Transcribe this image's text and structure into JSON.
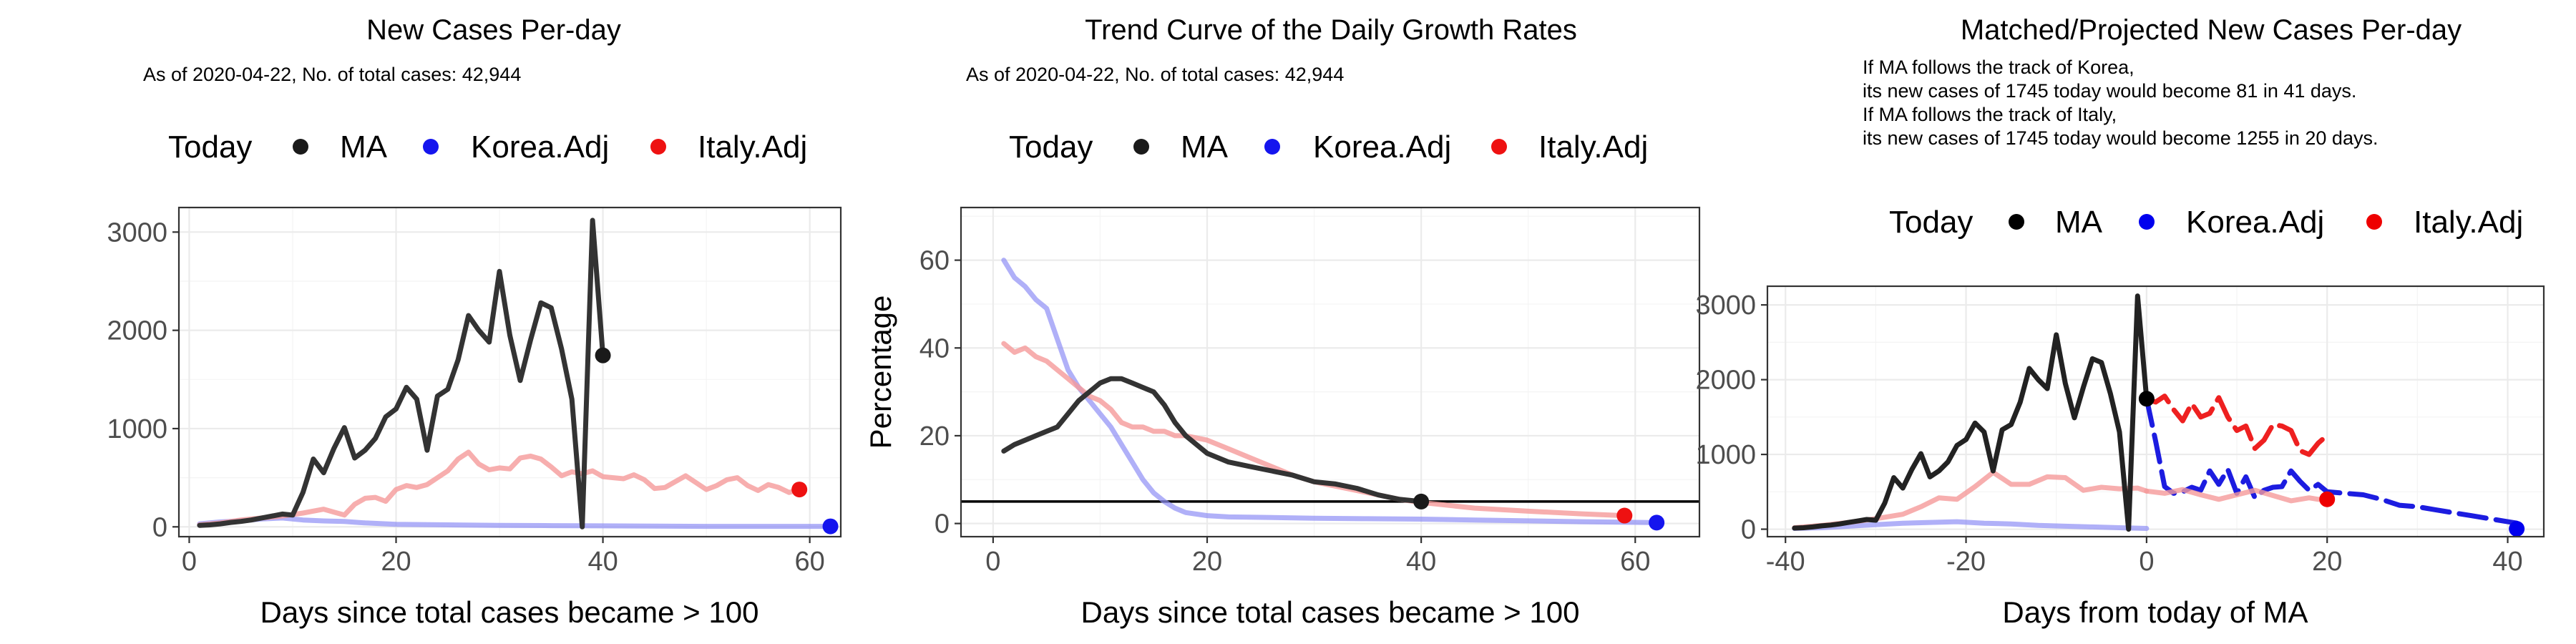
{
  "chart_data": [
    {
      "type": "line",
      "title": "New Cases Per-day",
      "subtitle": "As of 2020-04-22, No. of total cases: 42,944",
      "xlabel": "Days since total cases became > 100",
      "ylabel": "",
      "xlim": [
        -1,
        63
      ],
      "ylim": [
        -100,
        3250
      ],
      "xticks": [
        0,
        20,
        40,
        60
      ],
      "yticks": [
        0,
        1000,
        2000,
        3000
      ],
      "grid": true,
      "legend": {
        "placement": "top",
        "title": "Today",
        "entries": [
          {
            "name": "MA",
            "color": "#1a1a1a"
          },
          {
            "name": "Korea.Adj",
            "color": "#1515ee"
          },
          {
            "name": "Italy.Adj",
            "color": "#ee1111"
          }
        ]
      },
      "series": [
        {
          "name": "Korea.Adj",
          "color": "#8f8ff5",
          "alpha": 0.7,
          "width": 7,
          "x": [
            1,
            3,
            5,
            7,
            9,
            11,
            13,
            15,
            17,
            20,
            25,
            30,
            35,
            40,
            45,
            50,
            55,
            62
          ],
          "y": [
            30,
            50,
            60,
            80,
            90,
            70,
            60,
            55,
            40,
            25,
            20,
            15,
            12,
            10,
            8,
            5,
            5,
            5
          ]
        },
        {
          "name": "Italy.Adj",
          "color": "#f59a9a",
          "alpha": 0.8,
          "width": 7,
          "x": [
            1,
            3,
            5,
            7,
            9,
            11,
            13,
            14,
            15,
            16,
            17,
            18,
            19,
            20,
            21,
            22,
            23,
            24,
            25,
            26,
            27,
            28,
            29,
            30,
            31,
            32,
            33,
            34,
            35,
            36,
            37,
            38,
            39,
            40,
            41,
            42,
            43,
            44,
            45,
            46,
            47,
            48,
            49,
            50,
            51,
            52,
            53,
            54,
            55,
            56,
            57,
            58,
            59
          ],
          "y": [
            20,
            40,
            70,
            90,
            110,
            140,
            180,
            150,
            120,
            230,
            290,
            300,
            260,
            380,
            420,
            400,
            430,
            500,
            570,
            690,
            760,
            640,
            580,
            600,
            590,
            700,
            720,
            690,
            610,
            520,
            560,
            540,
            570,
            510,
            500,
            490,
            530,
            480,
            390,
            400,
            460,
            520,
            450,
            380,
            420,
            480,
            500,
            420,
            370,
            430,
            400,
            350,
            380
          ]
        },
        {
          "name": "MA",
          "color": "#333333",
          "alpha": 1,
          "width": 7,
          "x": [
            1,
            2,
            3,
            4,
            5,
            6,
            7,
            8,
            9,
            10,
            11,
            12,
            13,
            14,
            15,
            16,
            17,
            18,
            19,
            20,
            21,
            22,
            23,
            24,
            25,
            26,
            27,
            28,
            29,
            30,
            31,
            32,
            33,
            34,
            35,
            36,
            37,
            38,
            39,
            40
          ],
          "y": [
            15,
            20,
            30,
            45,
            55,
            70,
            90,
            110,
            130,
            120,
            350,
            690,
            550,
            800,
            1010,
            700,
            780,
            900,
            1120,
            1200,
            1420,
            1300,
            780,
            1330,
            1400,
            1700,
            2150,
            2000,
            1880,
            2600,
            1950,
            1490,
            1900,
            2280,
            2230,
            1810,
            1300,
            0,
            3120,
            1745
          ]
        }
      ],
      "today_points": [
        {
          "name": "MA",
          "x": 40,
          "y": 1745,
          "color": "#1a1a1a"
        },
        {
          "name": "Korea.Adj",
          "x": 62,
          "y": 5,
          "color": "#1515ee"
        },
        {
          "name": "Italy.Adj",
          "x": 59,
          "y": 380,
          "color": "#ee1111"
        }
      ]
    },
    {
      "type": "line",
      "title": "Trend Curve of the Daily Growth Rates",
      "subtitle": "As of 2020-04-22, No. of total cases: 42,944",
      "xlabel": "Days since total cases became > 100",
      "ylabel": "Percentage",
      "xlim": [
        -3,
        66
      ],
      "ylim": [
        -3,
        72
      ],
      "xticks": [
        0,
        20,
        40,
        60
      ],
      "yticks": [
        0,
        20,
        40,
        60
      ],
      "grid": true,
      "hline": 5,
      "legend": {
        "placement": "top",
        "title": "Today",
        "entries": [
          {
            "name": "MA",
            "color": "#1a1a1a"
          },
          {
            "name": "Korea.Adj",
            "color": "#1515ee"
          },
          {
            "name": "Italy.Adj",
            "color": "#ee1111"
          }
        ]
      },
      "series": [
        {
          "name": "Korea.Adj",
          "color": "#8f8ff5",
          "alpha": 0.7,
          "width": 7,
          "x": [
            1,
            2,
            3,
            4,
            5,
            6,
            7,
            8,
            9,
            10,
            11,
            12,
            13,
            14,
            15,
            16,
            17,
            18,
            20,
            22,
            25,
            30,
            35,
            40,
            45,
            50,
            55,
            62
          ],
          "y": [
            60,
            56,
            54,
            51,
            49,
            42,
            35,
            31,
            28,
            25,
            22,
            18,
            14,
            10,
            7,
            5,
            3.5,
            2.5,
            1.8,
            1.5,
            1.4,
            1.2,
            1.1,
            1.0,
            0.8,
            0.6,
            0.4,
            0.2
          ]
        },
        {
          "name": "Italy.Adj",
          "color": "#f59a9a",
          "alpha": 0.8,
          "width": 7,
          "x": [
            1,
            2,
            3,
            4,
            5,
            6,
            7,
            8,
            9,
            10,
            11,
            12,
            13,
            14,
            15,
            16,
            17,
            18,
            20,
            22,
            24,
            26,
            28,
            30,
            32,
            34,
            36,
            38,
            40,
            45,
            50,
            55,
            59
          ],
          "y": [
            41,
            39,
            40,
            38,
            37,
            35,
            33,
            31,
            29,
            28,
            26,
            23,
            22,
            22,
            21,
            21,
            20,
            20,
            19,
            17,
            15,
            13,
            11,
            9.5,
            8.5,
            7.5,
            6.5,
            5.5,
            4.8,
            3.5,
            2.8,
            2.2,
            1.8
          ]
        },
        {
          "name": "MA",
          "color": "#333333",
          "alpha": 1,
          "width": 7,
          "x": [
            1,
            2,
            3,
            4,
            5,
            6,
            7,
            8,
            9,
            10,
            11,
            12,
            13,
            14,
            15,
            16,
            17,
            18,
            19,
            20,
            22,
            24,
            26,
            28,
            30,
            32,
            34,
            36,
            38,
            40
          ],
          "y": [
            16.5,
            18,
            19,
            20,
            21,
            22,
            25,
            28,
            30,
            32,
            33,
            33,
            32,
            31,
            30,
            27,
            23,
            20,
            18,
            16,
            14,
            13,
            12,
            11,
            9.5,
            9,
            8,
            6.5,
            5.5,
            5
          ]
        }
      ],
      "today_points": [
        {
          "name": "MA",
          "x": 40,
          "y": 5,
          "color": "#1a1a1a"
        },
        {
          "name": "Korea.Adj",
          "x": 62,
          "y": 0.2,
          "color": "#1515ee"
        },
        {
          "name": "Italy.Adj",
          "x": 59,
          "y": 1.8,
          "color": "#ee1111"
        }
      ]
    },
    {
      "type": "line",
      "title": "Matched/Projected New Cases Per-day",
      "subtitle": "If MA follows the track of Korea,\nits new cases of 1745 today would become 81 in 41 days.\nIf MA follows the track of Italy,\nits new cases of 1745 today would become 1255 in 20 days.",
      "xlabel": "Days from today of MA",
      "ylabel": "",
      "xlim": [
        -42,
        44
      ],
      "ylim": [
        -100,
        3250
      ],
      "xticks": [
        -40,
        -20,
        0,
        20,
        40
      ],
      "yticks": [
        0,
        1000,
        2000,
        3000
      ],
      "grid": true,
      "legend": {
        "placement": "top",
        "title": "Today",
        "entries": [
          {
            "name": "MA",
            "color": "#000000"
          },
          {
            "name": "Korea.Adj",
            "color": "#0000ee"
          },
          {
            "name": "Italy.Adj",
            "color": "#ee0000"
          }
        ]
      },
      "series": [
        {
          "name": "Korea.Adj (matched)",
          "color": "#8f8ff5",
          "alpha": 0.7,
          "width": 7,
          "dashed": false,
          "x": [
            -39,
            -36,
            -33,
            -30,
            -27,
            -24,
            -21,
            -18,
            -15,
            -12,
            -9,
            -6,
            -3,
            0
          ],
          "y": [
            10,
            20,
            40,
            60,
            80,
            90,
            100,
            80,
            70,
            50,
            40,
            30,
            20,
            10
          ]
        },
        {
          "name": "Italy.Adj (matched)",
          "color": "#f59a9a",
          "alpha": 0.8,
          "width": 7,
          "dashed": false,
          "x": [
            -39,
            -36,
            -33,
            -30,
            -27,
            -25,
            -23,
            -21,
            -19,
            -17,
            -15,
            -13,
            -11,
            -9,
            -7,
            -5,
            -3,
            -1,
            0
          ],
          "y": [
            20,
            50,
            90,
            140,
            200,
            300,
            420,
            400,
            570,
            760,
            600,
            600,
            700,
            690,
            520,
            560,
            540,
            550,
            510
          ]
        },
        {
          "name": "MA",
          "color": "#222222",
          "alpha": 1,
          "width": 7,
          "dashed": false,
          "x": [
            -39,
            -38,
            -37,
            -36,
            -35,
            -34,
            -33,
            -32,
            -31,
            -30,
            -29,
            -28,
            -27,
            -26,
            -25,
            -24,
            -23,
            -22,
            -21,
            -20,
            -19,
            -18,
            -17,
            -16,
            -15,
            -14,
            -13,
            -12,
            -11,
            -10,
            -9,
            -8,
            -7,
            -6,
            -5,
            -4,
            -3,
            -2,
            -1,
            0
          ],
          "y": [
            15,
            20,
            30,
            45,
            55,
            70,
            90,
            110,
            130,
            120,
            350,
            690,
            550,
            800,
            1010,
            700,
            780,
            900,
            1120,
            1200,
            1420,
            1300,
            780,
            1330,
            1400,
            1700,
            2150,
            2000,
            1880,
            2600,
            1950,
            1490,
            1900,
            2280,
            2230,
            1810,
            1300,
            0,
            3120,
            1745
          ]
        },
        {
          "name": "Korea.Adj (projected)",
          "color": "#1c1ce0",
          "alpha": 1,
          "width": 7,
          "dashed": true,
          "x": [
            0,
            1,
            2,
            3,
            4,
            5,
            6,
            7,
            8,
            9,
            10,
            11,
            12,
            13,
            14,
            15,
            16,
            17,
            18,
            19,
            20,
            22,
            24,
            26,
            28,
            30,
            32,
            34,
            36,
            38,
            40,
            41
          ],
          "y": [
            1745,
            1180,
            570,
            480,
            500,
            560,
            520,
            780,
            600,
            800,
            480,
            700,
            420,
            520,
            560,
            570,
            780,
            640,
            520,
            600,
            500,
            480,
            460,
            400,
            320,
            300,
            260,
            220,
            180,
            140,
            100,
            81
          ]
        },
        {
          "name": "Italy.Adj (projected)",
          "color": "#ee2020",
          "alpha": 1,
          "width": 7,
          "dashed": true,
          "x": [
            0,
            1,
            2,
            3,
            4,
            5,
            6,
            7,
            8,
            9,
            10,
            11,
            12,
            13,
            14,
            15,
            16,
            17,
            18,
            19,
            20
          ],
          "y": [
            1745,
            1700,
            1780,
            1600,
            1450,
            1680,
            1500,
            1550,
            1760,
            1500,
            1320,
            1380,
            1080,
            1190,
            1400,
            1380,
            1320,
            1050,
            1000,
            1150,
            1255
          ]
        },
        {
          "name": "Italy.Adj (tail)",
          "color": "#f59a9a",
          "alpha": 0.8,
          "width": 7,
          "dashed": false,
          "x": [
            0,
            2,
            4,
            6,
            8,
            10,
            12,
            14,
            16,
            18,
            19,
            20
          ],
          "y": [
            510,
            480,
            530,
            460,
            400,
            460,
            520,
            450,
            380,
            420,
            400,
            390
          ]
        }
      ],
      "today_points": [
        {
          "name": "MA",
          "x": 0,
          "y": 1745,
          "color": "#000000"
        },
        {
          "name": "Korea.Adj",
          "x": 41,
          "y": 5,
          "color": "#0000ee"
        },
        {
          "name": "Italy.Adj",
          "x": 20,
          "y": 400,
          "color": "#ee0000"
        }
      ]
    }
  ]
}
